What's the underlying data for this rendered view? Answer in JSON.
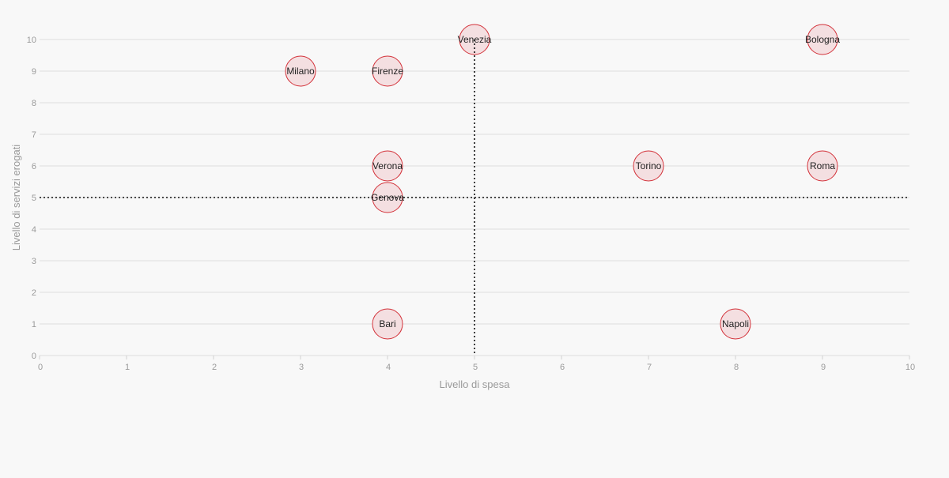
{
  "chart_data": {
    "type": "scatter",
    "title": "",
    "xlabel": "Livello di spesa",
    "ylabel": "Livello di servizi erogati",
    "xlim": [
      0,
      10
    ],
    "ylim": [
      0,
      10
    ],
    "x_ticks": [
      "0",
      "1",
      "2",
      "3",
      "4",
      "5",
      "6",
      "7",
      "8",
      "9",
      "10"
    ],
    "y_ticks": [
      "0",
      "1",
      "2",
      "3",
      "4",
      "5",
      "6",
      "7",
      "8",
      "9",
      "10"
    ],
    "grid": "horizontal",
    "reference_lines": {
      "x": 5,
      "y": 5,
      "style": "dotted"
    },
    "colors": {
      "marker_fill": "#f4dfe1",
      "marker_stroke": "#d3323a",
      "label": "#222222"
    },
    "points": [
      {
        "label": "Venezia",
        "x": 5,
        "y": 10
      },
      {
        "label": "Bologna",
        "x": 9,
        "y": 10
      },
      {
        "label": "Milano",
        "x": 3,
        "y": 9
      },
      {
        "label": "Firenze",
        "x": 4,
        "y": 9
      },
      {
        "label": "Verona",
        "x": 4,
        "y": 6
      },
      {
        "label": "Torino",
        "x": 7,
        "y": 6
      },
      {
        "label": "Roma",
        "x": 9,
        "y": 6
      },
      {
        "label": "Genova",
        "x": 4,
        "y": 5
      },
      {
        "label": "Bari",
        "x": 4,
        "y": 1
      },
      {
        "label": "Napoli",
        "x": 8,
        "y": 1
      }
    ]
  }
}
